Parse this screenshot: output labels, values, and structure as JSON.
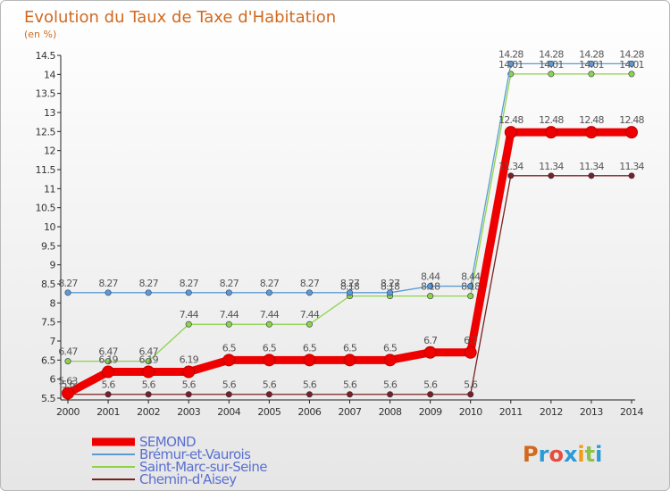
{
  "chart_data": {
    "type": "line",
    "title": "Evolution du Taux de Taxe d'Habitation",
    "ylabel": "(en %)",
    "xlabel": "",
    "categories": [
      "2000",
      "2001",
      "2002",
      "2003",
      "2004",
      "2005",
      "2006",
      "2007",
      "2008",
      "2009",
      "2010",
      "2011",
      "2012",
      "2013",
      "2014"
    ],
    "ylim": [
      5.5,
      14.5
    ],
    "yticks": [
      "5.5",
      "6",
      "6.5",
      "7",
      "7.5",
      "8",
      "8.5",
      "9",
      "9.5",
      "10",
      "10.5",
      "11",
      "11.5",
      "12",
      "12.5",
      "13",
      "13.5",
      "14",
      "14.5"
    ],
    "series": [
      {
        "name": "SEMOND",
        "color": "#ee0000",
        "values": [
          5.63,
          6.19,
          6.19,
          6.19,
          6.5,
          6.5,
          6.5,
          6.5,
          6.5,
          6.7,
          6.7,
          12.48,
          12.48,
          12.48,
          12.48
        ],
        "labels": [
          "5.63",
          "6.19",
          "6.19",
          "6.19",
          "6.5",
          "6.5",
          "6.5",
          "6.5",
          "6.5",
          "6.7",
          "6.7",
          "12.48",
          "12.48",
          "12.48",
          "12.48"
        ]
      },
      {
        "name": "Brémur-et-Vaurois",
        "color": "#5b9bd5",
        "values": [
          8.27,
          8.27,
          8.27,
          8.27,
          8.27,
          8.27,
          8.27,
          8.27,
          8.27,
          8.44,
          8.44,
          14.28,
          14.28,
          14.28,
          14.28
        ],
        "labels": [
          "8.27",
          "8.27",
          "8.27",
          "8.27",
          "8.27",
          "8.27",
          "8.27",
          "8.27",
          "8.27",
          "8.44",
          "8.44",
          "14.28",
          "14.28",
          "14.28",
          "14.28"
        ]
      },
      {
        "name": "Saint-Marc-sur-Seine",
        "color": "#8ed34a",
        "values": [
          6.47,
          6.47,
          6.47,
          7.44,
          7.44,
          7.44,
          7.44,
          8.18,
          8.18,
          8.18,
          8.18,
          14.01,
          14.01,
          14.01,
          14.01
        ],
        "labels": [
          "6.47",
          "6.47",
          "6.47",
          "7.44",
          "7.44",
          "7.44",
          "7.44",
          "8.18",
          "8.18",
          "8.18",
          "8.18",
          "14.01",
          "14.01",
          "14.01",
          "14.01"
        ]
      },
      {
        "name": "Chemin-d'Aisey",
        "color": "#7a2020",
        "values": [
          5.6,
          5.6,
          5.6,
          5.6,
          5.6,
          5.6,
          5.6,
          5.6,
          5.6,
          5.6,
          5.6,
          11.34,
          11.34,
          11.34,
          11.34
        ],
        "labels": [
          "5.6",
          "5.6",
          "5.6",
          "5.6",
          "5.6",
          "5.6",
          "5.6",
          "5.6",
          "5.6",
          "5.6",
          "5.6",
          "11.34",
          "11.34",
          "11.34",
          "11.34"
        ]
      }
    ],
    "legend_placement": "bottom-left",
    "grid": false
  },
  "logo": {
    "text": "Proxiti",
    "colors": [
      "#d2691e",
      "#2a9bd8",
      "#e74c3c",
      "#2a9bd8",
      "#f39c12",
      "#8bc34a",
      "#2a9bd8"
    ]
  }
}
